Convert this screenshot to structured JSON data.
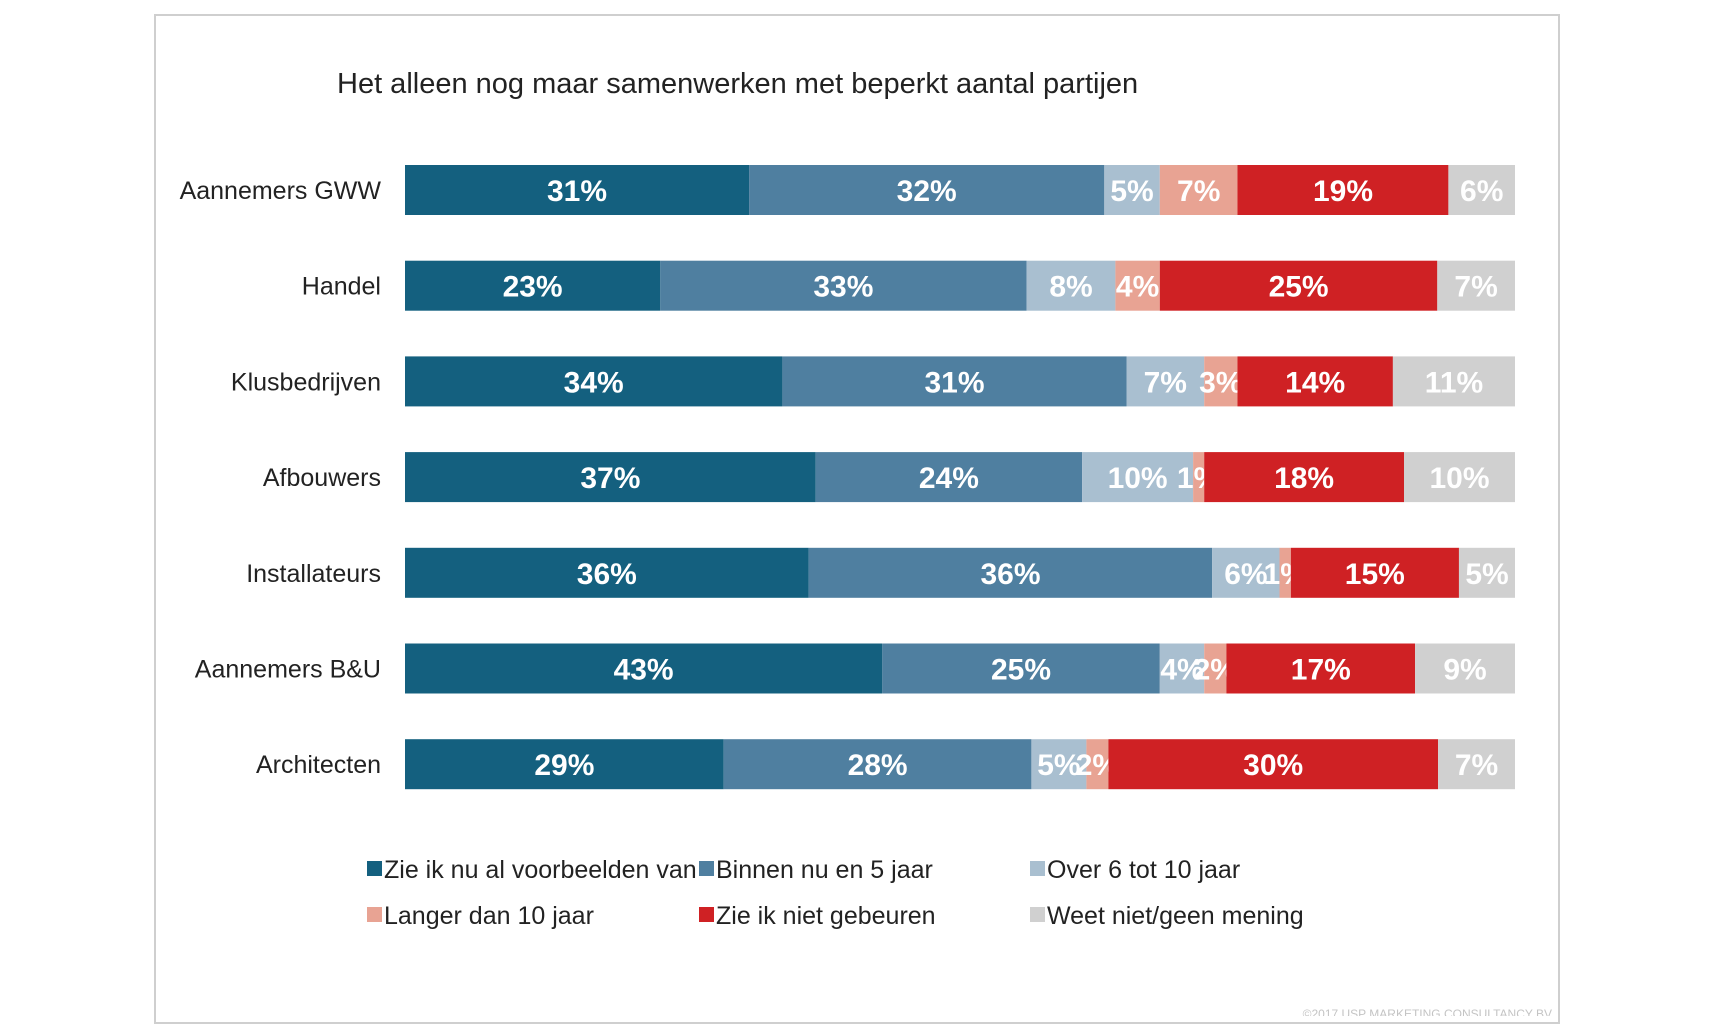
{
  "chart_data": {
    "type": "bar",
    "orientation": "horizontal",
    "stacked": "100%",
    "title": "Het alleen nog maar samenwerken met beperkt aantal partijen",
    "categories": [
      "Aannemers GWW",
      "Handel",
      "Klusbedrijven",
      "Afbouwers",
      "Installateurs",
      "Aannemers B&U",
      "Architecten"
    ],
    "series": [
      {
        "name": "Zie ik nu al voorbeelden van",
        "color": "#14607f",
        "label_color": "#ffffff",
        "values": [
          31,
          23,
          34,
          37,
          36,
          43,
          29
        ]
      },
      {
        "name": "Binnen nu en 5 jaar",
        "color": "#4f7fa0",
        "label_color": "#ffffff",
        "values": [
          32,
          33,
          31,
          24,
          36,
          25,
          28
        ]
      },
      {
        "name": "Over 6 tot 10 jaar",
        "color": "#a9bfd0",
        "label_color": "#ffffff",
        "values": [
          5,
          8,
          7,
          10,
          6,
          4,
          5
        ]
      },
      {
        "name": "Langer dan 10 jaar",
        "color": "#e8a393",
        "label_color": "#ffffff",
        "values": [
          7,
          4,
          3,
          1,
          1,
          2,
          2
        ]
      },
      {
        "name": "Zie ik niet gebeuren",
        "color": "#cf2124",
        "label_color": "#ffffff",
        "values": [
          19,
          25,
          14,
          18,
          15,
          17,
          30
        ]
      },
      {
        "name": "Weet niet/geen mening",
        "color": "#d0d0d0",
        "label_color": "#ffffff",
        "values": [
          6,
          7,
          11,
          10,
          5,
          9,
          7
        ]
      }
    ],
    "value_suffix": "%",
    "legend_position": "bottom",
    "grid": false
  },
  "copyright": "©2017 USP MARKETING CONSULTANCY BV"
}
